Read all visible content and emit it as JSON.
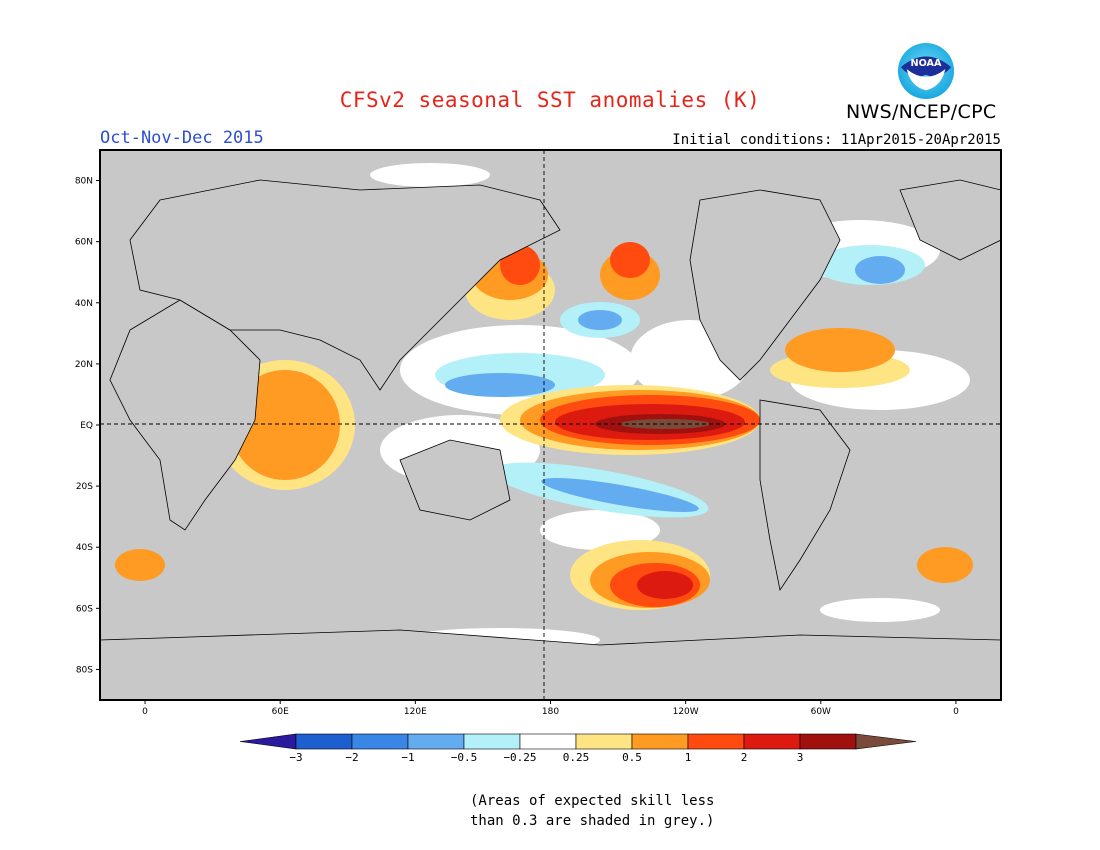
{
  "header": {
    "title": "CFSv2 seasonal SST anomalies (K)",
    "org": "NWS/NCEP/CPC",
    "season": "Oct-Nov-Dec 2015",
    "initial_conditions": "Initial conditions: 11Apr2015-20Apr2015",
    "logo_text": "NOAA"
  },
  "map": {
    "lat_labels": [
      "80N",
      "60N",
      "40N",
      "20N",
      "EQ",
      "20S",
      "40S",
      "60S",
      "80S"
    ],
    "lat_values": [
      80,
      60,
      40,
      20,
      0,
      -20,
      -40,
      -60,
      -80
    ],
    "lon_labels": [
      "0",
      "60E",
      "120E",
      "180",
      "120W",
      "60W",
      "0"
    ],
    "lon_values": [
      0,
      60,
      120,
      180,
      240,
      300,
      360
    ],
    "lon_range": [
      -20,
      380
    ],
    "lat_range": [
      -90,
      90
    ],
    "reference_lines": [
      "equator",
      "dateline"
    ],
    "grey_meaning": "skill < 0.3"
  },
  "colorbar": {
    "levels": [
      "-3",
      "-2",
      "-1",
      "-0.5",
      "-0.25",
      "0.25",
      "0.5",
      "1",
      "2",
      "3"
    ],
    "colors": [
      "#2a1a9e",
      "#1e5fd0",
      "#3a86e6",
      "#63acf0",
      "#b4f0f8",
      "#ffffff",
      "#ffe484",
      "#ff9a22",
      "#ff4a10",
      "#dc1a10",
      "#a0100e",
      "#7a4a3a"
    ]
  },
  "footnote": {
    "line1": "(Areas of expected skill less",
    "line2": "than 0.3 are shaded in grey.)"
  }
}
